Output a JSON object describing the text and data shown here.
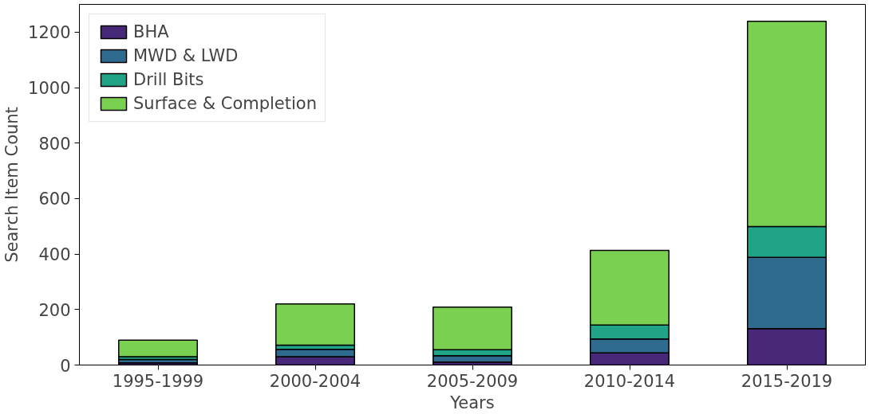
{
  "chart_data": {
    "type": "bar",
    "stacked": true,
    "xlabel": "Years",
    "ylabel": "Search Item Count",
    "categories": [
      "1995-1999",
      "2000-2004",
      "2005-2009",
      "2010-2014",
      "2015-2019"
    ],
    "series": [
      {
        "name": "BHA",
        "color": "#482878",
        "values": [
          8,
          30,
          11,
          44,
          131
        ]
      },
      {
        "name": "MWD & LWD",
        "color": "#2f6b8e",
        "values": [
          12,
          27,
          23,
          50,
          257
        ]
      },
      {
        "name": "Drill Bits",
        "color": "#20a386",
        "values": [
          10,
          15,
          21,
          50,
          111
        ]
      },
      {
        "name": "Surface & Completion",
        "color": "#7ad151",
        "values": [
          60,
          148,
          154,
          269,
          740
        ]
      }
    ],
    "ylim": [
      0,
      1300
    ],
    "yticks": [
      0,
      200,
      400,
      600,
      800,
      1000,
      1200
    ],
    "grid": false,
    "legend": "top left"
  }
}
